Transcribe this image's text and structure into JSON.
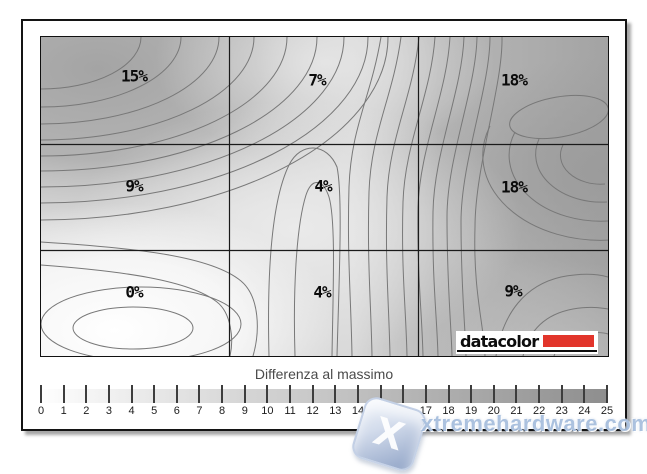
{
  "chart_data": {
    "type": "contour",
    "title": "Differenza al massimo",
    "grid_rows": 3,
    "grid_cols": 3,
    "cell_labels": [
      [
        "15%",
        "7%",
        "18%"
      ],
      [
        "9%",
        "4%",
        "18%"
      ],
      [
        "0%",
        "4%",
        "9%"
      ]
    ],
    "values_percent": [
      [
        15,
        7,
        18
      ],
      [
        9,
        4,
        18
      ],
      [
        0,
        4,
        9
      ]
    ],
    "colorbar": {
      "label": "Differenza al massimo",
      "min": 0,
      "max": 25,
      "ticks": [
        "0",
        "1",
        "2",
        "3",
        "4",
        "5",
        "6",
        "7",
        "8",
        "9",
        "10",
        "11",
        "12",
        "13",
        "14",
        "15",
        "16",
        "17",
        "18",
        "19",
        "20",
        "21",
        "22",
        "23",
        "24",
        "25"
      ],
      "gradient_start": "#fdfdfd",
      "gradient_end": "#8e8e8e",
      "position": "bottom"
    },
    "shading": {
      "dark_regions": "top-left (15%), right column (18%)",
      "light_region": "bottom-left (0%)"
    }
  },
  "branding": {
    "datacolor_text": "datacolor",
    "accent_red": "#e2352b"
  },
  "watermark": {
    "text": "xtremehardware.com",
    "icon_letter": "X"
  }
}
